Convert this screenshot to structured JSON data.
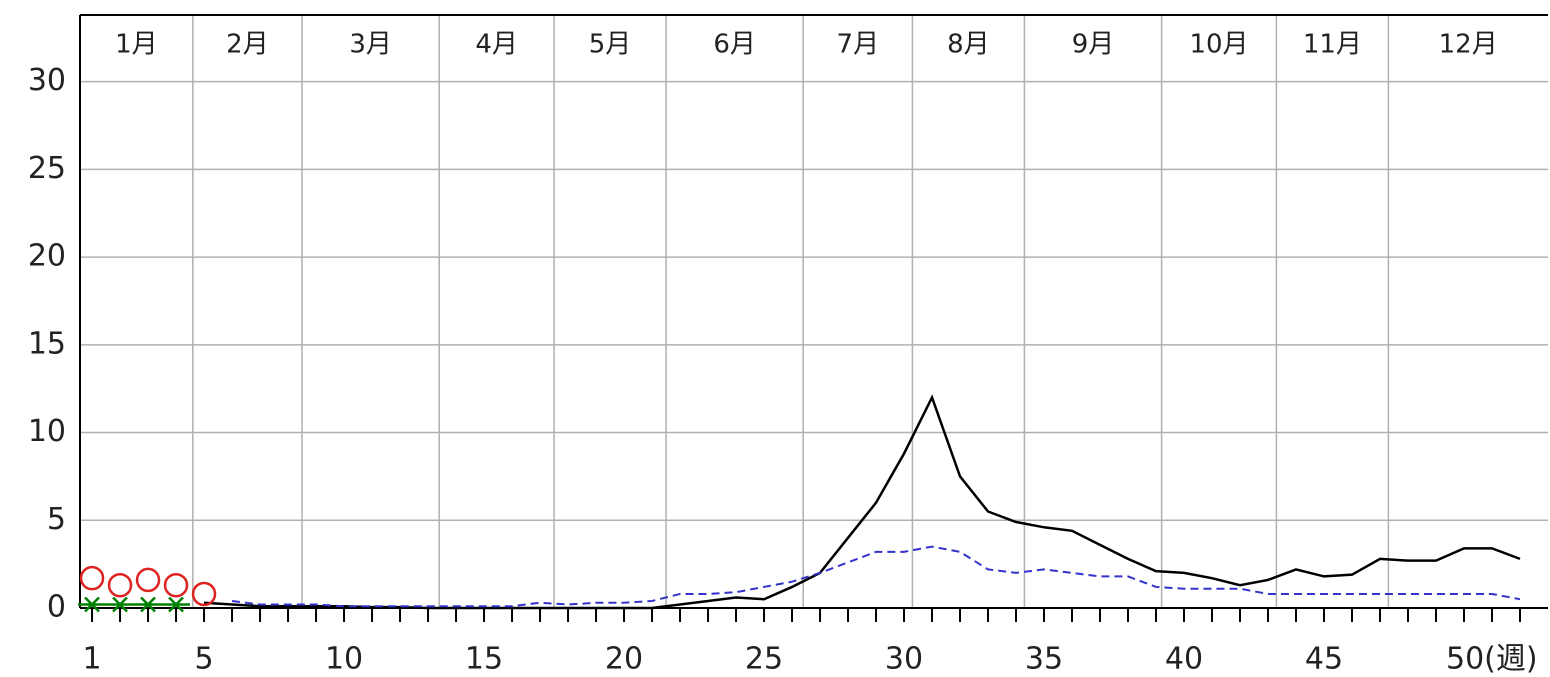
{
  "chart_data": {
    "type": "line",
    "x": [
      1,
      2,
      3,
      4,
      5,
      6,
      7,
      8,
      9,
      10,
      11,
      12,
      13,
      14,
      15,
      16,
      17,
      18,
      19,
      20,
      21,
      22,
      23,
      24,
      25,
      26,
      27,
      28,
      29,
      30,
      31,
      32,
      33,
      34,
      35,
      36,
      37,
      38,
      39,
      40,
      41,
      42,
      43,
      44,
      45,
      46,
      47,
      48,
      49,
      50,
      51,
      52
    ],
    "xlim": [
      0.57,
      53
    ],
    "ylim": [
      0,
      33.8
    ],
    "yticks": [
      0,
      5,
      10,
      15,
      20,
      25,
      30
    ],
    "xticks": [
      1,
      5,
      10,
      15,
      20,
      25,
      30,
      35,
      40,
      45,
      {
        "value": 50,
        "label": "50(週)"
      }
    ],
    "grid": true,
    "months": [
      "1月",
      "2月",
      "3月",
      "4月",
      "5月",
      "6月",
      "7月",
      "8月",
      "9月",
      "10月",
      "11月",
      "12月"
    ],
    "month_boundaries": [
      4.6,
      8.5,
      13.4,
      17.5,
      21.5,
      26.4,
      30.3,
      34.3,
      39.2,
      43.3,
      47.3
    ],
    "series": [
      {
        "color": "#000000",
        "style": "solid",
        "values": [
          null,
          null,
          null,
          null,
          0.3,
          0.2,
          0.1,
          0.1,
          0.1,
          0.1,
          0.05,
          0.05,
          0,
          0,
          0,
          0,
          0,
          0,
          0,
          0,
          0,
          0.2,
          0.4,
          0.6,
          0.5,
          1.2,
          2.0,
          4.0,
          6.0,
          8.8,
          12.0,
          7.5,
          5.5,
          4.9,
          4.6,
          4.4,
          3.6,
          2.8,
          2.1,
          2.0,
          1.7,
          1.3,
          1.6,
          2.2,
          1.8,
          1.9,
          2.8,
          2.7,
          2.7,
          3.4,
          3.4,
          2.8
        ]
      },
      {
        "color": "#3333cc",
        "style": "dashed",
        "values": [
          null,
          null,
          null,
          null,
          null,
          0.4,
          0.2,
          0.2,
          0.2,
          0.1,
          0.1,
          0.1,
          0.1,
          0.1,
          0.1,
          0.1,
          0.3,
          0.2,
          0.3,
          0.3,
          0.4,
          0.8,
          0.8,
          0.9,
          1.2,
          1.5,
          2.0,
          2.6,
          3.2,
          3.2,
          3.5,
          3.2,
          2.2,
          2.0,
          2.2,
          2.0,
          1.8,
          1.8,
          1.2,
          1.1,
          1.1,
          1.1,
          0.8,
          0.8,
          0.8,
          0.8,
          0.8,
          0.8,
          0.8,
          0.8,
          0.8,
          0.5
        ]
      },
      {
        "color": "#dd2222",
        "style": "circle",
        "values": [
          1.7,
          1.3,
          1.6,
          1.3,
          0.8,
          null,
          null,
          null,
          null,
          null,
          null,
          null,
          null,
          null,
          null,
          null,
          null,
          null,
          null,
          null,
          null,
          null,
          null,
          null,
          null,
          null,
          null,
          null,
          null,
          null,
          null,
          null,
          null,
          null,
          null,
          null,
          null,
          null,
          null,
          null,
          null,
          null,
          null,
          null,
          null,
          null,
          null,
          null,
          null,
          null,
          null,
          null
        ]
      },
      {
        "color": "#008000",
        "style": "cross",
        "values": [
          0.2,
          0.2,
          0.2,
          0.2,
          null,
          null,
          null,
          null,
          null,
          null,
          null,
          null,
          null,
          null,
          null,
          null,
          null,
          null,
          null,
          null,
          null,
          null,
          null,
          null,
          null,
          null,
          null,
          null,
          null,
          null,
          null,
          null,
          null,
          null,
          null,
          null,
          null,
          null,
          null,
          null,
          null,
          null,
          null,
          null,
          null,
          null,
          null,
          null,
          null,
          null,
          null,
          null
        ]
      }
    ]
  }
}
